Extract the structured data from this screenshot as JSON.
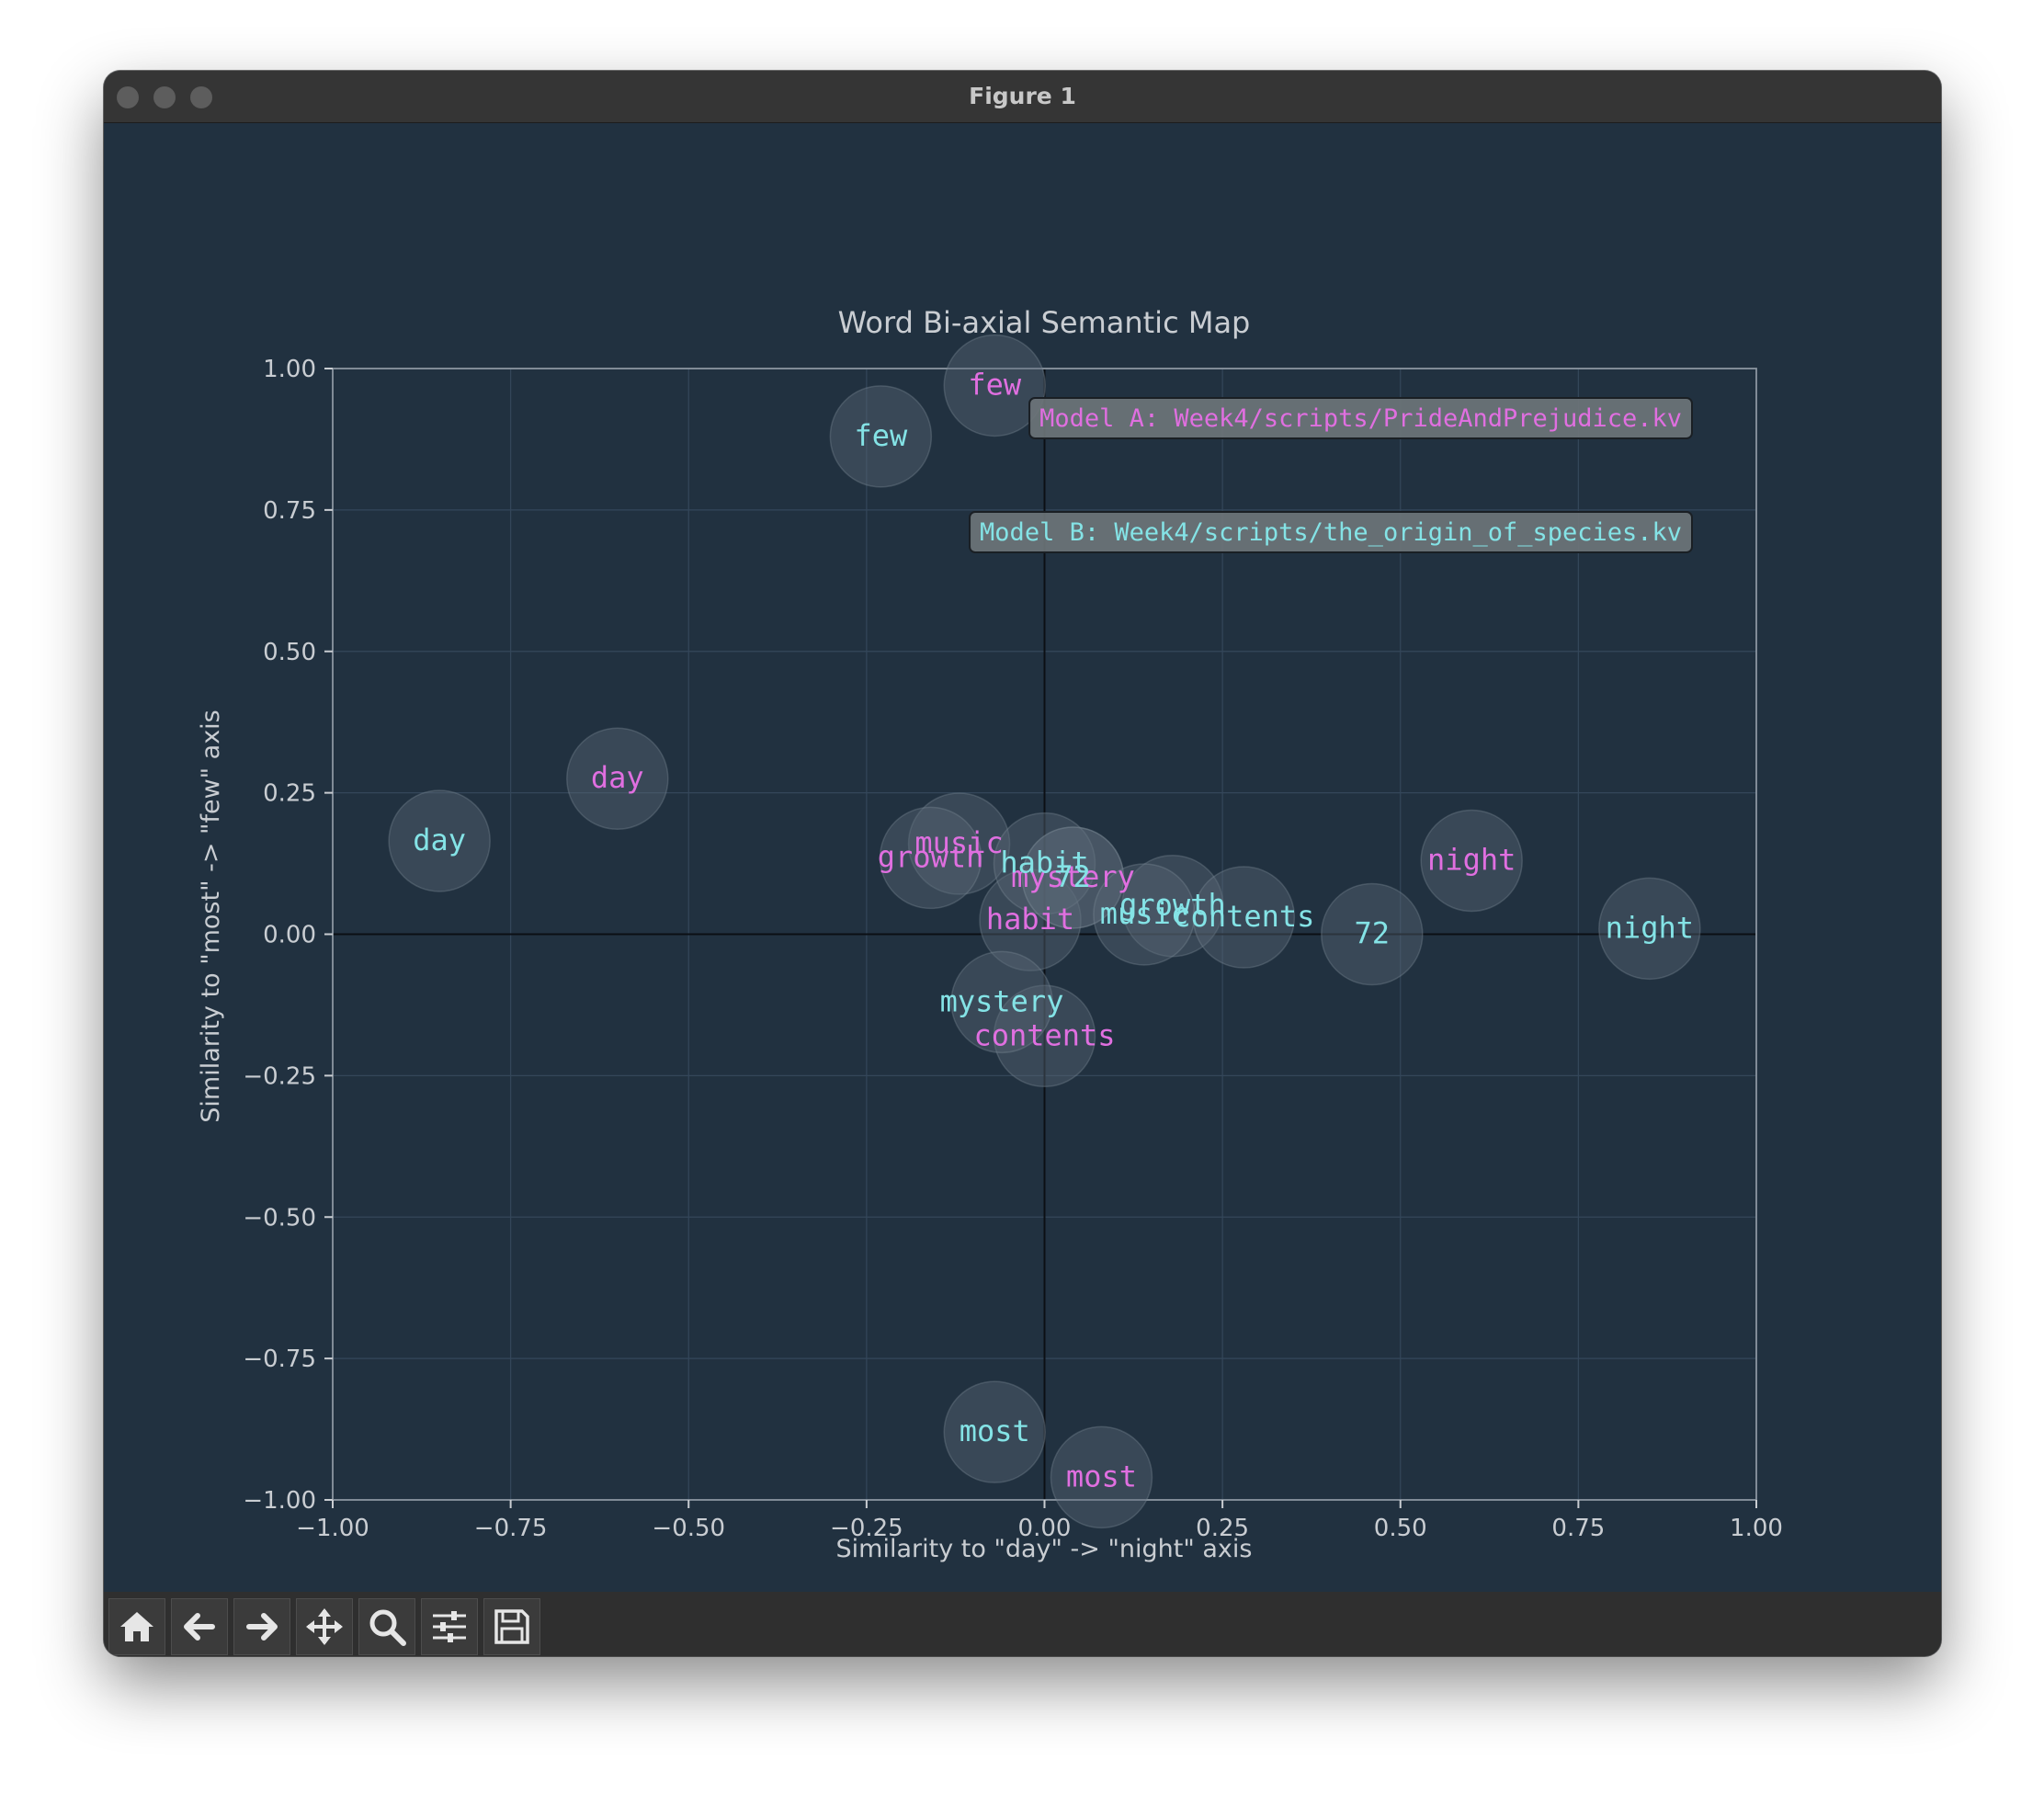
{
  "window": {
    "title": "Figure 1"
  },
  "toolbar": {
    "items": [
      {
        "name": "home-button",
        "icon": "home-icon"
      },
      {
        "name": "back-button",
        "icon": "arrow-left-icon"
      },
      {
        "name": "forward-button",
        "icon": "arrow-right-icon"
      },
      {
        "name": "pan-button",
        "icon": "move-icon"
      },
      {
        "name": "zoom-button",
        "icon": "magnifier-icon"
      },
      {
        "name": "configure-subplots-button",
        "icon": "sliders-icon"
      },
      {
        "name": "save-button",
        "icon": "floppy-disk-icon"
      }
    ]
  },
  "chart_data": {
    "type": "scatter",
    "title": "Word Bi-axial Semantic Map",
    "xlabel": "Similarity to \"day\" -> \"night\" axis",
    "ylabel": "Similarity to \"most\" -> \"few\" axis",
    "xlim": [
      -1.0,
      1.0
    ],
    "ylim": [
      -1.0,
      1.0
    ],
    "xticks": [
      "−1.00",
      "−0.75",
      "−0.50",
      "−0.25",
      "0.00",
      "0.25",
      "0.50",
      "0.75",
      "1.00"
    ],
    "yticks": [
      "−1.00",
      "−0.75",
      "−0.50",
      "−0.25",
      "0.00",
      "0.25",
      "0.50",
      "0.75",
      "1.00"
    ],
    "grid": true,
    "colors": {
      "background": "#213140",
      "model_a": "#e06fe0",
      "model_b": "#84e3e6",
      "text": "#c9cdd2",
      "grid": "#34475a",
      "bubble": "#5a6a78"
    },
    "legend_boxes": [
      {
        "text": "Model A: Week4/scripts/PrideAndPrejudice.kv",
        "series": "model_a"
      },
      {
        "text": "Model B: Week4/scripts/the_origin_of_species.kv",
        "series": "model_b"
      }
    ],
    "series": [
      {
        "key": "model_a",
        "points": [
          {
            "word": "few",
            "x": -0.07,
            "y": 0.97
          },
          {
            "word": "day",
            "x": -0.6,
            "y": 0.275
          },
          {
            "word": "night",
            "x": 0.6,
            "y": 0.13
          },
          {
            "word": "music",
            "x": -0.12,
            "y": 0.16
          },
          {
            "word": "growth",
            "x": -0.16,
            "y": 0.135
          },
          {
            "word": "mystery",
            "x": 0.04,
            "y": 0.1
          },
          {
            "word": "habit",
            "x": -0.02,
            "y": 0.025
          },
          {
            "word": "contents",
            "x": 0.0,
            "y": -0.18
          },
          {
            "word": "most",
            "x": 0.08,
            "y": -0.96
          }
        ]
      },
      {
        "key": "model_b",
        "points": [
          {
            "word": "few",
            "x": -0.23,
            "y": 0.88
          },
          {
            "word": "day",
            "x": -0.85,
            "y": 0.165
          },
          {
            "word": "night",
            "x": 0.85,
            "y": 0.01
          },
          {
            "word": "habit",
            "x": 0.0,
            "y": 0.125
          },
          {
            "word": "72",
            "x": 0.04,
            "y": 0.1
          },
          {
            "word": "growth",
            "x": 0.18,
            "y": 0.05
          },
          {
            "word": "music",
            "x": 0.14,
            "y": 0.035
          },
          {
            "word": "contents",
            "x": 0.28,
            "y": 0.03
          },
          {
            "word": "72",
            "x": 0.46,
            "y": 0.0
          },
          {
            "word": "mystery",
            "x": -0.06,
            "y": -0.12
          },
          {
            "word": "most",
            "x": -0.07,
            "y": -0.88
          }
        ]
      }
    ]
  }
}
